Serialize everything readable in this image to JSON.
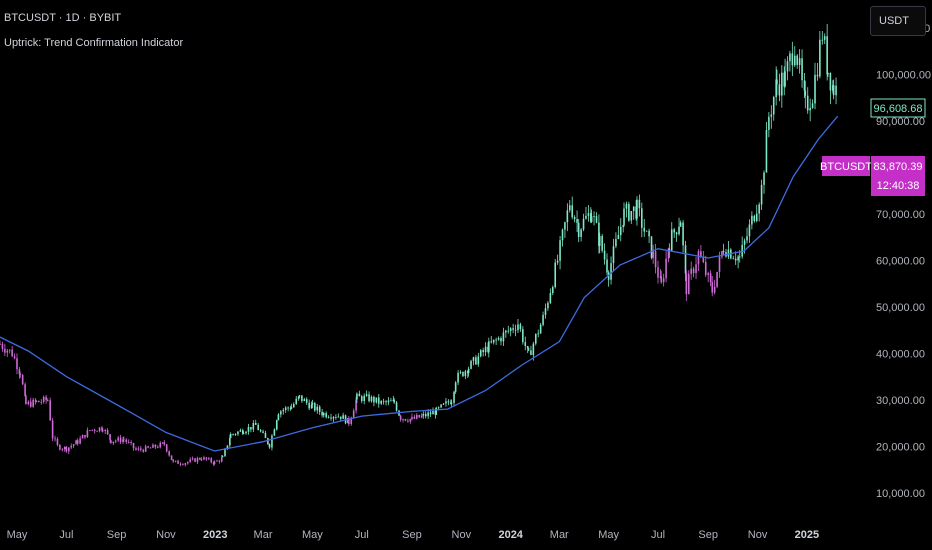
{
  "header": {
    "symbol_line": "BTCUSDT · 1D · BYBIT",
    "indicator_name": "Uptrick: Trend Confirmation Indicator"
  },
  "currency_button": {
    "label": "USDT"
  },
  "colors": {
    "background": "#000000",
    "bull_candle": "#7ee8c8",
    "bear_candle": "#d16ad9",
    "trend_line": "#3d6be0",
    "axis_text": "#b2b5be",
    "last_price_box": "#7ee8c8",
    "symbol_tag_bg": "#c42fc8"
  },
  "price_tags": {
    "last_price": "96,608.68",
    "symbol": "BTCUSDT",
    "symbol_price": "83,870.39",
    "countdown": "12:40:38"
  },
  "chart_data": {
    "type": "line",
    "title": "",
    "xlabel": "",
    "ylabel": "",
    "x_ticks": [
      {
        "label": "May",
        "x": "2022-05-01",
        "year": false
      },
      {
        "label": "Jul",
        "x": "2022-07-01",
        "year": false
      },
      {
        "label": "Sep",
        "x": "2022-09-01",
        "year": false
      },
      {
        "label": "Nov",
        "x": "2022-11-01",
        "year": false
      },
      {
        "label": "2023",
        "x": "2023-01-01",
        "year": true
      },
      {
        "label": "Mar",
        "x": "2023-03-01",
        "year": false
      },
      {
        "label": "May",
        "x": "2023-05-01",
        "year": false
      },
      {
        "label": "Jul",
        "x": "2023-07-01",
        "year": false
      },
      {
        "label": "Sep",
        "x": "2023-09-01",
        "year": false
      },
      {
        "label": "Nov",
        "x": "2023-11-01",
        "year": false
      },
      {
        "label": "2024",
        "x": "2024-01-01",
        "year": true
      },
      {
        "label": "Mar",
        "x": "2024-03-01",
        "year": false
      },
      {
        "label": "May",
        "x": "2024-05-01",
        "year": false
      },
      {
        "label": "Jul",
        "x": "2024-07-01",
        "year": false
      },
      {
        "label": "Sep",
        "x": "2024-09-01",
        "year": false
      },
      {
        "label": "Nov",
        "x": "2024-11-01",
        "year": false
      },
      {
        "label": "2025",
        "x": "2025-01-01",
        "year": true
      }
    ],
    "y_ticks": [
      {
        "label": "110,000.00",
        "value": 110000
      },
      {
        "label": "100,000.00",
        "value": 100000
      },
      {
        "label": "90,000.00",
        "value": 90000
      },
      {
        "label": "80,000.00",
        "value": 80000
      },
      {
        "label": "70,000.00",
        "value": 70000
      },
      {
        "label": "60,000.00",
        "value": 60000
      },
      {
        "label": "50,000.00",
        "value": 50000
      },
      {
        "label": "40,000.00",
        "value": 40000
      },
      {
        "label": "30,000.00",
        "value": 30000
      },
      {
        "label": "20,000.00",
        "value": 20000
      },
      {
        "label": "10,000.00",
        "value": 10000
      }
    ],
    "xlim": [
      "2022-04-10",
      "2025-03-15"
    ],
    "ylim": [
      2000,
      116000
    ],
    "series": [
      {
        "name": "BTCUSDT",
        "style": "candle-close",
        "points": [
          [
            "2022-04-10",
            42000,
            "bear"
          ],
          [
            "2022-04-25",
            40000,
            "bear"
          ],
          [
            "2022-05-05",
            36000,
            "bear"
          ],
          [
            "2022-05-12",
            29000,
            "bear"
          ],
          [
            "2022-05-25",
            29500,
            "bear"
          ],
          [
            "2022-06-08",
            30000,
            "bear"
          ],
          [
            "2022-06-14",
            22000,
            "bear"
          ],
          [
            "2022-06-20",
            20000,
            "bear"
          ],
          [
            "2022-07-01",
            19500,
            "bear"
          ],
          [
            "2022-07-15",
            21000,
            "bear"
          ],
          [
            "2022-07-30",
            23500,
            "bear"
          ],
          [
            "2022-08-15",
            24000,
            "bear"
          ],
          [
            "2022-08-25",
            21200,
            "bear"
          ],
          [
            "2022-09-10",
            21500,
            "bear"
          ],
          [
            "2022-09-25",
            19200,
            "bear"
          ],
          [
            "2022-10-10",
            19500,
            "bear"
          ],
          [
            "2022-10-30",
            20500,
            "bear"
          ],
          [
            "2022-11-10",
            16500,
            "bear"
          ],
          [
            "2022-11-25",
            16500,
            "bear"
          ],
          [
            "2022-12-15",
            17500,
            "bear"
          ],
          [
            "2022-12-31",
            16500,
            "bear"
          ],
          [
            "2023-01-10",
            17500,
            "bull"
          ],
          [
            "2023-01-20",
            22500,
            "bull"
          ],
          [
            "2023-02-05",
            23500,
            "bull"
          ],
          [
            "2023-02-20",
            24500,
            "bull"
          ],
          [
            "2023-03-09",
            20300,
            "bull"
          ],
          [
            "2023-03-20",
            27500,
            "bull"
          ],
          [
            "2023-04-05",
            28500,
            "bull"
          ],
          [
            "2023-04-15",
            30500,
            "bull"
          ],
          [
            "2023-05-01",
            28500,
            "bull"
          ],
          [
            "2023-05-15",
            27000,
            "bull"
          ],
          [
            "2023-06-05",
            26500,
            "bull"
          ],
          [
            "2023-06-15",
            25200,
            "bear"
          ],
          [
            "2023-06-25",
            30500,
            "bull"
          ],
          [
            "2023-07-10",
            30300,
            "bull"
          ],
          [
            "2023-07-25",
            29300,
            "bull"
          ],
          [
            "2023-08-10",
            29500,
            "bull"
          ],
          [
            "2023-08-18",
            26200,
            "bear"
          ],
          [
            "2023-09-01",
            25800,
            "bear"
          ],
          [
            "2023-09-15",
            26500,
            "bull"
          ],
          [
            "2023-10-01",
            27500,
            "bull"
          ],
          [
            "2023-10-20",
            30000,
            "bull"
          ],
          [
            "2023-10-25",
            34500,
            "bull"
          ],
          [
            "2023-11-10",
            37000,
            "bull"
          ],
          [
            "2023-12-05",
            41500,
            "bull"
          ],
          [
            "2023-12-20",
            43500,
            "bull"
          ],
          [
            "2024-01-10",
            46500,
            "bull"
          ],
          [
            "2024-01-23",
            39500,
            "bull"
          ],
          [
            "2024-02-10",
            47500,
            "bull"
          ],
          [
            "2024-02-28",
            60000,
            "bull"
          ],
          [
            "2024-03-14",
            72500,
            "bull"
          ],
          [
            "2024-03-25",
            67000,
            "bull"
          ],
          [
            "2024-04-10",
            70500,
            "bull"
          ],
          [
            "2024-04-20",
            64000,
            "bull"
          ],
          [
            "2024-05-01",
            57500,
            "bull"
          ],
          [
            "2024-05-20",
            70000,
            "bull"
          ],
          [
            "2024-06-05",
            71000,
            "bull"
          ],
          [
            "2024-06-25",
            61000,
            "bear"
          ],
          [
            "2024-07-05",
            54500,
            "bear"
          ],
          [
            "2024-07-15",
            64000,
            "bull"
          ],
          [
            "2024-07-29",
            69000,
            "bull"
          ],
          [
            "2024-08-05",
            54000,
            "bear"
          ],
          [
            "2024-08-20",
            61500,
            "bear"
          ],
          [
            "2024-09-06",
            53500,
            "bear"
          ],
          [
            "2024-09-20",
            63000,
            "bull"
          ],
          [
            "2024-10-10",
            60500,
            "bull"
          ],
          [
            "2024-10-25",
            68500,
            "bull"
          ],
          [
            "2024-11-06",
            75500,
            "bull"
          ],
          [
            "2024-11-15",
            91000,
            "bull"
          ],
          [
            "2024-11-25",
            98000,
            "bull"
          ],
          [
            "2024-12-05",
            99000,
            "bull"
          ],
          [
            "2024-12-17",
            107000,
            "bull"
          ],
          [
            "2024-12-30",
            93000,
            "bull"
          ],
          [
            "2025-01-08",
            96000,
            "bull"
          ],
          [
            "2025-01-20",
            109000,
            "bull"
          ],
          [
            "2025-01-27",
            101000,
            "bull"
          ],
          [
            "2025-02-03",
            97000,
            "bull"
          ],
          [
            "2025-02-08",
            96608.68,
            "bull"
          ]
        ]
      },
      {
        "name": "Uptrick: Trend Confirmation Indicator",
        "style": "line",
        "points": [
          [
            "2022-04-10",
            43500
          ],
          [
            "2022-05-15",
            40500
          ],
          [
            "2022-07-01",
            35000
          ],
          [
            "2022-09-01",
            29000
          ],
          [
            "2022-11-01",
            23000
          ],
          [
            "2022-12-31",
            19000
          ],
          [
            "2023-03-01",
            21000
          ],
          [
            "2023-05-01",
            24000
          ],
          [
            "2023-07-01",
            26500
          ],
          [
            "2023-09-01",
            27500
          ],
          [
            "2023-10-15",
            28000
          ],
          [
            "2023-12-01",
            32000
          ],
          [
            "2024-01-15",
            37500
          ],
          [
            "2024-03-01",
            42500
          ],
          [
            "2024-04-01",
            52000
          ],
          [
            "2024-05-15",
            59000
          ],
          [
            "2024-07-01",
            62500
          ],
          [
            "2024-09-01",
            60500
          ],
          [
            "2024-10-15",
            62000
          ],
          [
            "2024-11-15",
            67000
          ],
          [
            "2024-12-15",
            78000
          ],
          [
            "2025-01-15",
            86000
          ],
          [
            "2025-02-08",
            91000
          ]
        ]
      }
    ]
  }
}
